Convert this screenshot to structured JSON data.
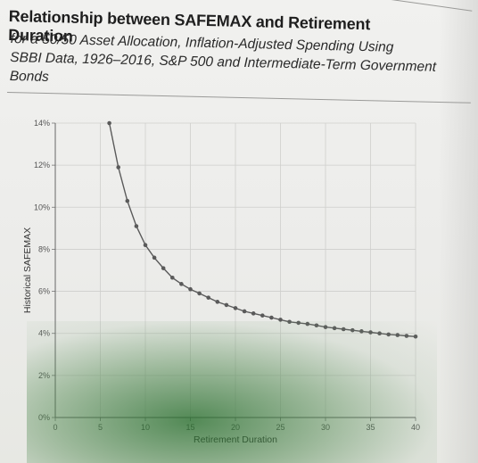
{
  "chart_data": {
    "type": "line",
    "title": "Relationship between SAFEMAX and Retirement Duration",
    "subtitle_lines": [
      "for a 50/50 Asset Allocation, Inflation-Adjusted Spending Using",
      "SBBI Data, 1926–2016, S&P 500 and Intermediate-Term Government",
      "Bonds"
    ],
    "xlabel": "Retirement Duration",
    "ylabel": "Historical SAFEMAX",
    "xlim": [
      0,
      40
    ],
    "ylim": [
      0,
      14
    ],
    "xticks": [
      0,
      5,
      10,
      15,
      20,
      25,
      30,
      35,
      40
    ],
    "xtick_labels": [
      "0",
      "5",
      "10",
      "15",
      "20",
      "25",
      "30",
      "35",
      "40"
    ],
    "yticks": [
      0,
      2,
      4,
      6,
      8,
      10,
      12,
      14
    ],
    "ytick_labels": [
      "0%",
      "2%",
      "4%",
      "6%",
      "8%",
      "10%",
      "12%",
      "14%"
    ],
    "grid": true,
    "line_color": "#5a5a5a",
    "marker_color": "#5a5a5a",
    "series": [
      {
        "x": [
          6,
          7,
          8,
          9,
          10,
          11,
          12,
          13,
          14,
          15,
          16,
          17,
          18,
          19,
          20,
          21,
          22,
          23,
          24,
          25,
          26,
          27,
          28,
          29,
          30,
          31,
          32,
          33,
          34,
          35,
          36,
          37,
          38,
          39,
          40
        ],
        "values": [
          14.0,
          11.9,
          10.3,
          9.1,
          8.2,
          7.6,
          7.1,
          6.65,
          6.35,
          6.1,
          5.9,
          5.7,
          5.5,
          5.35,
          5.2,
          5.05,
          4.95,
          4.85,
          4.75,
          4.65,
          4.55,
          4.5,
          4.45,
          4.38,
          4.3,
          4.25,
          4.2,
          4.15,
          4.1,
          4.05,
          4.0,
          3.95,
          3.92,
          3.88,
          3.85
        ]
      }
    ]
  }
}
